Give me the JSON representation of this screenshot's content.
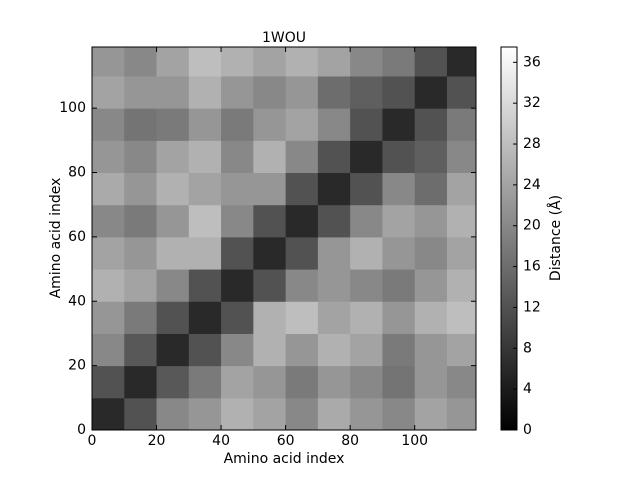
{
  "chart_data": {
    "type": "heatmap",
    "title": "1WOU",
    "x_label": "Amino acid index",
    "y_label": "Amino acid index",
    "colorbar_label": "Distance (Å)",
    "x": [
      0,
      10,
      20,
      30,
      40,
      50,
      60,
      70,
      80,
      90,
      100,
      110,
      119
    ],
    "y": [
      0,
      10,
      20,
      30,
      40,
      50,
      60,
      70,
      80,
      90,
      100,
      110,
      119
    ],
    "z": [
      [
        6,
        12,
        20,
        22,
        26,
        24,
        20,
        25,
        22,
        20,
        24,
        22
      ],
      [
        12,
        6,
        13,
        18,
        24,
        22,
        18,
        22,
        20,
        17,
        22,
        20
      ],
      [
        20,
        13,
        6,
        12,
        20,
        26,
        22,
        26,
        24,
        18,
        22,
        24
      ],
      [
        22,
        18,
        12,
        6,
        12,
        26,
        28,
        24,
        26,
        22,
        26,
        28
      ],
      [
        26,
        24,
        20,
        12,
        6,
        12,
        20,
        22,
        20,
        18,
        22,
        26
      ],
      [
        24,
        22,
        26,
        26,
        12,
        6,
        12,
        22,
        26,
        22,
        20,
        24
      ],
      [
        20,
        18,
        22,
        28,
        20,
        12,
        6,
        12,
        20,
        24,
        22,
        26
      ],
      [
        25,
        22,
        26,
        24,
        22,
        22,
        12,
        6,
        12,
        20,
        16,
        24
      ],
      [
        22,
        20,
        24,
        26,
        20,
        26,
        20,
        12,
        6,
        12,
        14,
        20
      ],
      [
        20,
        17,
        18,
        22,
        18,
        22,
        24,
        20,
        12,
        6,
        12,
        18
      ],
      [
        24,
        22,
        22,
        26,
        22,
        20,
        22,
        16,
        14,
        12,
        6,
        12
      ],
      [
        22,
        20,
        24,
        28,
        26,
        24,
        26,
        24,
        20,
        18,
        12,
        6
      ]
    ],
    "colormap": "gray",
    "xlim": [
      0,
      119
    ],
    "ylim": [
      0,
      119
    ],
    "xticks": [
      0,
      20,
      40,
      60,
      80,
      100
    ],
    "yticks": [
      0,
      20,
      40,
      60,
      80,
      100
    ],
    "clim": [
      0,
      37.5
    ],
    "cticks": [
      0,
      4,
      8,
      12,
      16,
      20,
      24,
      28,
      32,
      36
    ]
  }
}
